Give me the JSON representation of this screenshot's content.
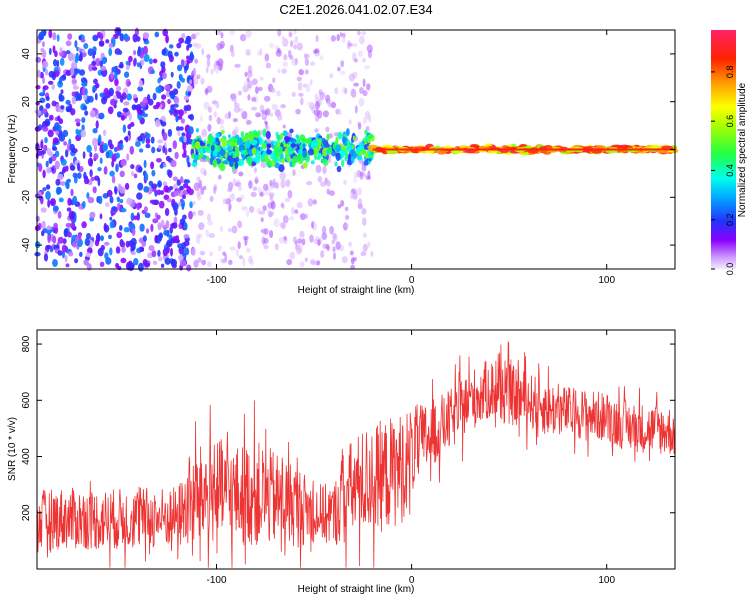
{
  "title": "C2E1.2026.041.02.07.E34",
  "chart_data": [
    {
      "type": "heatmap",
      "title": "C2E1.2026.041.02.07.E34",
      "xlabel": "Height of straight line (km)",
      "ylabel": "Frequency (Hz)",
      "xlim": [
        -192,
        135
      ],
      "ylim": [
        -50,
        50
      ],
      "xticks": [
        -100,
        0,
        100
      ],
      "xtick_labels": [
        "-100",
        "0",
        "100"
      ],
      "yticks": [
        -40,
        -20,
        0,
        20,
        40
      ],
      "ytick_labels": [
        "-40",
        "-20",
        "0",
        "20",
        "40"
      ],
      "colorbar": {
        "label": "Normalized spectral amplitude",
        "range": [
          0,
          0.97
        ],
        "ticks": [
          0.0,
          0.2,
          0.4,
          0.6,
          0.8
        ],
        "tick_labels": [
          "0.0",
          "0.2",
          "0.4",
          "0.6",
          "0.8"
        ]
      },
      "description_regions": [
        {
          "x_from": -192,
          "x_to": -112,
          "freq_spread": 50,
          "amplitude": 0.15,
          "density": "dense"
        },
        {
          "x_from": -112,
          "x_to": -20,
          "freq_spread": 50,
          "amplitude": 0.05,
          "density": "sparse"
        },
        {
          "x_from": -112,
          "x_to": -20,
          "freq_spread": 6,
          "amplitude": 0.35,
          "density": "band"
        },
        {
          "x_from": -20,
          "x_to": 135,
          "freq_spread": 2,
          "amplitude": 0.9,
          "density": "line"
        }
      ]
    },
    {
      "type": "line",
      "xlabel": "Height of straight line (km)",
      "ylabel": "SNR (10 * v/v)",
      "xlim": [
        -192,
        135
      ],
      "ylim": [
        0,
        850
      ],
      "xticks": [
        -100,
        0,
        100
      ],
      "xtick_labels": [
        "-100",
        "0",
        "100"
      ],
      "yticks": [
        200,
        400,
        600,
        800
      ],
      "ytick_labels": [
        "200",
        "400",
        "600",
        "800"
      ],
      "color": "#ee3333",
      "series": [
        {
          "name": "SNR",
          "x": [
            -192,
            -180,
            -160,
            -140,
            -120,
            -111,
            -100,
            -90,
            -80,
            -70,
            -60,
            -50,
            -40,
            -35,
            -25,
            -15,
            -5,
            0,
            10,
            20,
            30,
            40,
            50,
            60,
            70,
            80,
            90,
            100,
            110,
            120,
            135
          ],
          "mean": [
            170,
            180,
            175,
            180,
            185,
            250,
            280,
            260,
            270,
            250,
            230,
            200,
            190,
            260,
            310,
            330,
            360,
            420,
            480,
            530,
            600,
            640,
            620,
            600,
            570,
            560,
            550,
            540,
            510,
            500,
            490
          ],
          "spread": [
            110,
            110,
            110,
            110,
            110,
            180,
            190,
            180,
            190,
            170,
            150,
            110,
            110,
            170,
            190,
            200,
            200,
            160,
            120,
            110,
            110,
            110,
            110,
            100,
            100,
            90,
            90,
            90,
            90,
            90,
            90
          ]
        }
      ]
    }
  ]
}
